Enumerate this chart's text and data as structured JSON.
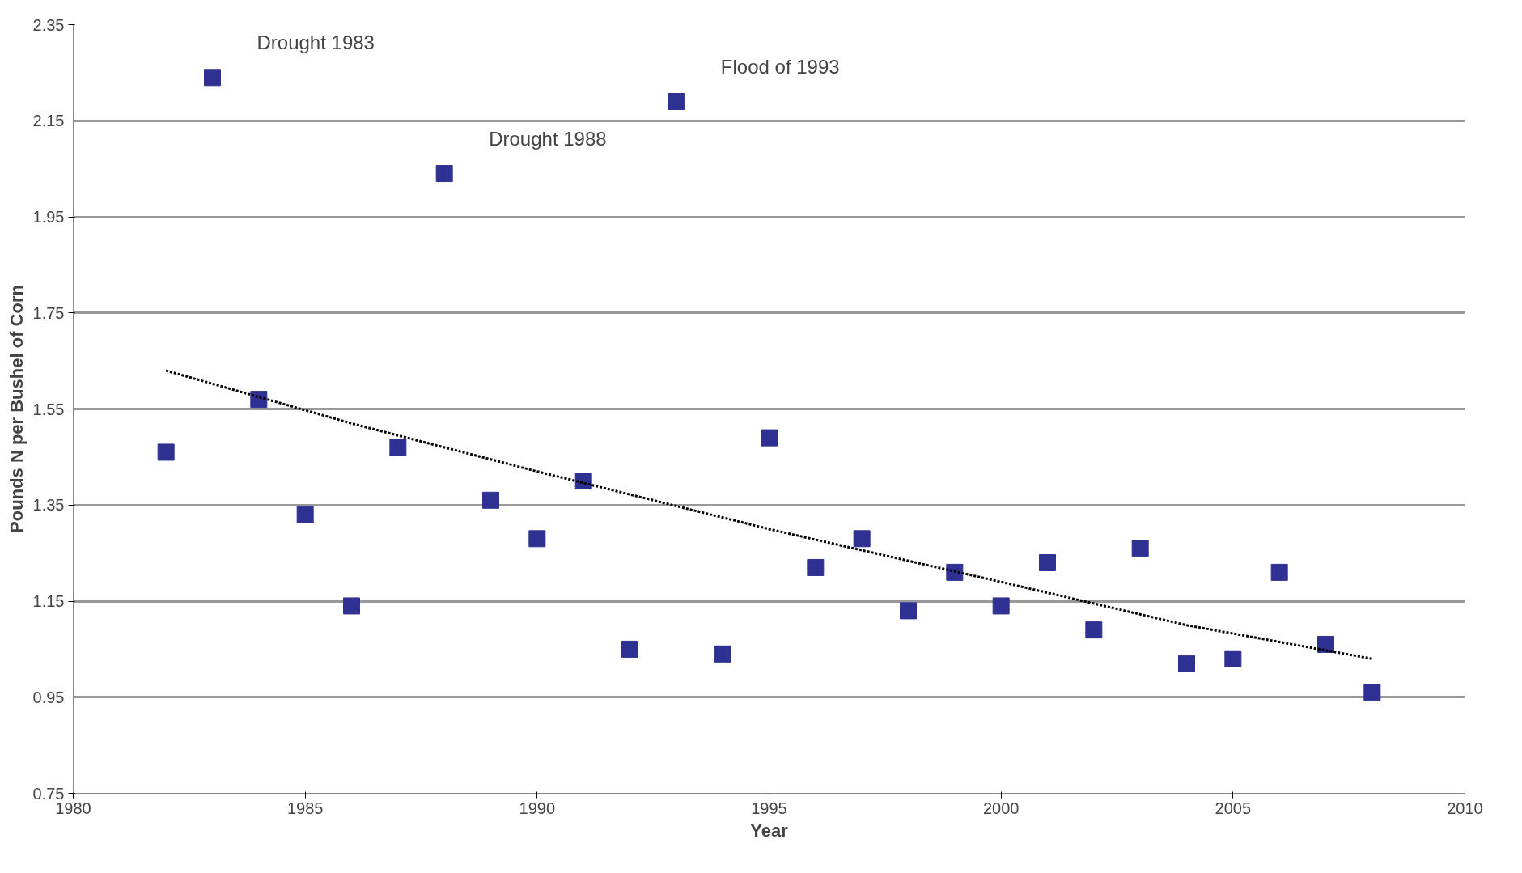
{
  "chart_data": {
    "type": "scatter",
    "xlabel": "Year",
    "ylabel": "Pounds N per Bushel of Corn",
    "xlim": [
      1980,
      2010
    ],
    "xticks": [
      1980,
      1985,
      1990,
      1995,
      2000,
      2005,
      2010
    ],
    "ylim": [
      0.75,
      2.35
    ],
    "yticks": [
      0.75,
      0.95,
      1.15,
      1.35,
      1.55,
      1.75,
      1.95,
      2.15,
      2.35
    ],
    "grid": "y",
    "marker": "square",
    "series": [
      {
        "color": "#2e3192",
        "x": [
          1982,
          1983,
          1984,
          1985,
          1986,
          1987,
          1988,
          1989,
          1990,
          1991,
          1992,
          1993,
          1994,
          1995,
          1996,
          1997,
          1998,
          1999,
          2000,
          2001,
          2002,
          2003,
          2004,
          2005,
          2006,
          2007,
          2008
        ],
        "values": [
          1.46,
          2.24,
          1.57,
          1.33,
          1.14,
          1.47,
          2.04,
          1.36,
          1.28,
          1.4,
          1.05,
          2.19,
          1.04,
          1.49,
          1.22,
          1.28,
          1.13,
          1.21,
          1.14,
          1.23,
          1.09,
          1.26,
          1.02,
          1.03,
          1.21,
          1.06,
          0.96
        ]
      },
      {
        "type": "line",
        "color": "#000000",
        "line_style": "dotted",
        "marker": "none",
        "x": [
          1982,
          1986,
          1990,
          1995,
          2000,
          2004,
          2008
        ],
        "values": [
          1.63,
          1.52,
          1.42,
          1.3,
          1.19,
          1.1,
          1.03
        ]
      }
    ],
    "annotations": [
      {
        "text": "Drought 1983",
        "x": 1983,
        "y": 2.24
      },
      {
        "text": "Flood of 1993",
        "x": 1993,
        "y": 2.19
      },
      {
        "text": "Drought 1988",
        "x": 1988,
        "y": 2.04
      }
    ]
  }
}
